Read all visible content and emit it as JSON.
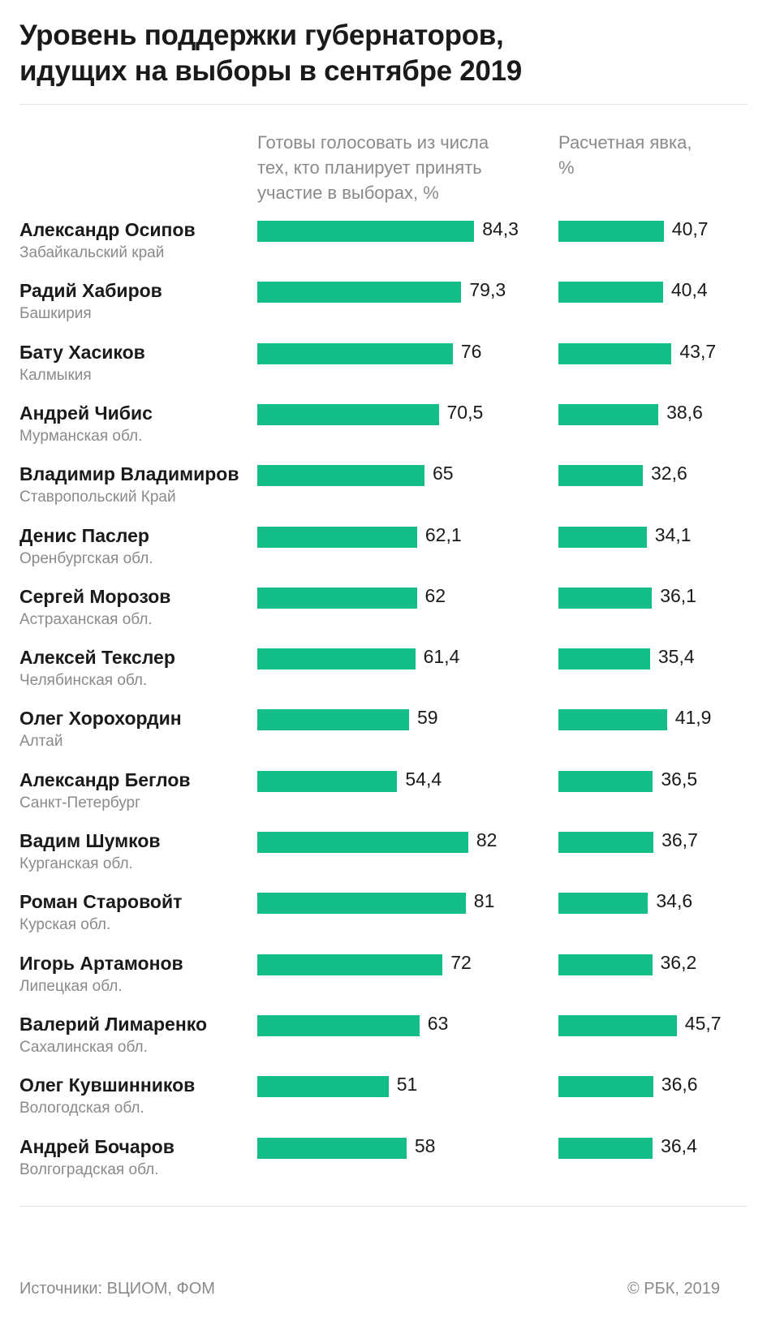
{
  "title_lines": [
    "Уровень поддержки губернаторов,",
    "идущих на выборы в сентябре 2019"
  ],
  "colors": {
    "bar": "#13bd87",
    "text": "#1a1a1a",
    "muted": "#8a8a8a"
  },
  "chart_data": {
    "type": "bar",
    "orientation": "horizontal",
    "title": "Уровень поддержки губернаторов, идущих на выборы в сентябре 2019",
    "column_headers": {
      "support": [
        "Готовы голосовать из числа",
        "тех, кто планирует принять",
        "участие в выборах, %"
      ],
      "turnout": [
        "Расчетная явка,",
        "%"
      ]
    },
    "categories": [
      {
        "name": "Александр Осипов",
        "region": "Забайкальский край"
      },
      {
        "name": "Радий Хабиров",
        "region": "Башкирия"
      },
      {
        "name": "Бату Хасиков",
        "region": "Калмыкия"
      },
      {
        "name": "Андрей Чибис",
        "region": "Мурманская обл."
      },
      {
        "name": "Владимир Владимиров",
        "region": "Ставропольский Край"
      },
      {
        "name": "Денис Паслер",
        "region": "Оренбургская обл."
      },
      {
        "name": "Сергей Морозов",
        "region": "Астраханская обл."
      },
      {
        "name": "Алексей Текслер",
        "region": "Челябинская обл."
      },
      {
        "name": "Олег  Хорохордин",
        "region": "Алтай"
      },
      {
        "name": "Александр Беглов",
        "region": "Санкт-Петербург"
      },
      {
        "name": "Вадим Шумков",
        "region": "Курганская обл."
      },
      {
        "name": "Роман Старовойт",
        "region": "Курская обл."
      },
      {
        "name": "Игорь Артамонов",
        "region": "Липецкая обл."
      },
      {
        "name": "Валерий Лимаренко",
        "region": "Сахалинская обл."
      },
      {
        "name": "Олег Кувшинников",
        "region": "Вологодская обл."
      },
      {
        "name": "Андрей  Бочаров",
        "region": "Волгоградская обл."
      }
    ],
    "series": [
      {
        "values": [
          84.3,
          79.3,
          76,
          70.5,
          65,
          62.1,
          62,
          61.4,
          59,
          54.4,
          82,
          81,
          72,
          63,
          51,
          58
        ],
        "labels": [
          "84,3",
          "79,3",
          "76",
          "70,5",
          "65",
          "62,1",
          "62",
          "61,4",
          "59",
          "54,4",
          "82",
          "81",
          "72",
          "63",
          "51",
          "58"
        ]
      },
      {
        "values": [
          40.7,
          40.4,
          43.7,
          38.6,
          32.6,
          34.1,
          36.1,
          35.4,
          41.9,
          36.5,
          36.7,
          34.6,
          36.2,
          45.7,
          36.6,
          36.4
        ],
        "labels": [
          "40,7",
          "40,4",
          "43,7",
          "38,6",
          "32,6",
          "34,1",
          "36,1",
          "35,4",
          "41,9",
          "36,5",
          "36,7",
          "34,6",
          "36,2",
          "45,7",
          "36,6",
          "36,4"
        ]
      }
    ],
    "grid": false,
    "legend": "none"
  },
  "footer": {
    "source": "Источники: ВЦИОМ, ФОМ",
    "credit": "© РБК, 2019"
  }
}
